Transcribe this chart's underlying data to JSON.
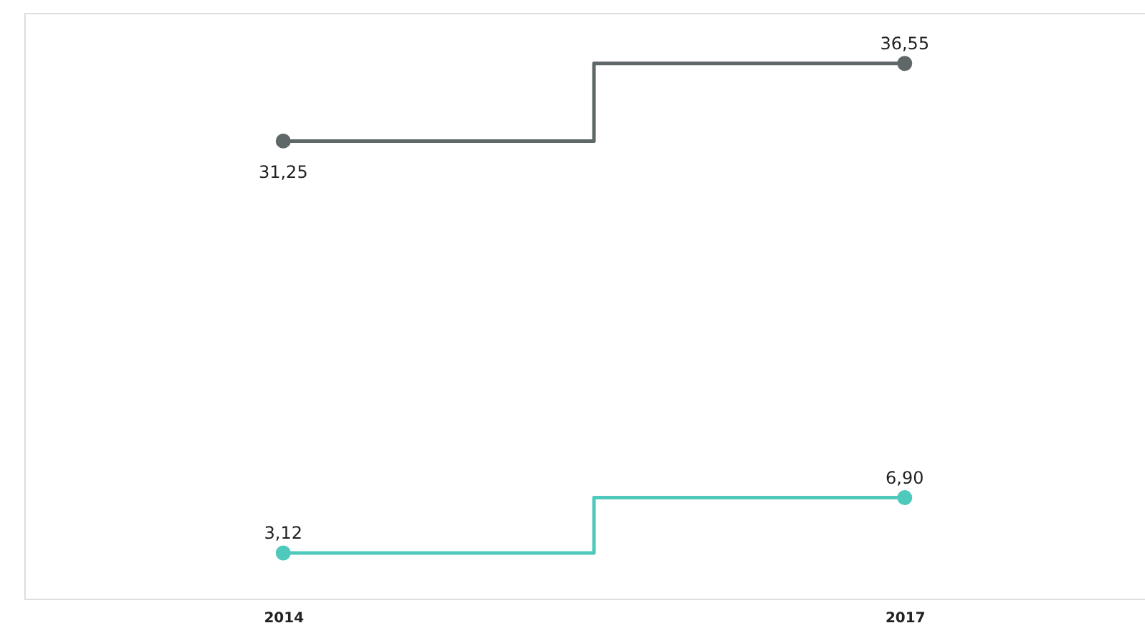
{
  "chart_data": {
    "type": "step",
    "x": [
      2014,
      2017
    ],
    "xlim": [
      2012.75,
      2018.16
    ],
    "xticks": [
      2014,
      2017
    ],
    "series": [
      {
        "color": "#5f6769",
        "values": [
          31.25,
          36.55
        ],
        "value_labels": [
          "31,25",
          "36,55"
        ]
      },
      {
        "color": "#4fc9bc",
        "values": [
          3.12,
          6.9
        ],
        "value_labels": [
          "3,12",
          "6,90"
        ]
      }
    ],
    "marker": "circle",
    "grid": false,
    "legend": false,
    "tick_labels": "x"
  }
}
